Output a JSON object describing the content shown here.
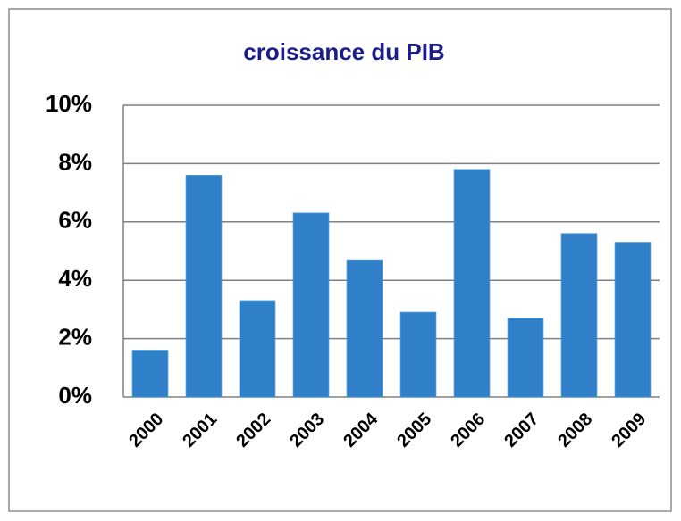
{
  "chart_data": {
    "type": "bar",
    "title": "croissance du PIB",
    "categories": [
      "2000",
      "2001",
      "2002",
      "2003",
      "2004",
      "2005",
      "2006",
      "2007",
      "2008",
      "2009"
    ],
    "values": [
      1.6,
      7.6,
      3.3,
      6.3,
      4.7,
      2.9,
      7.8,
      2.7,
      5.6,
      5.3
    ],
    "color": "#2f80c6",
    "ylim": [
      0,
      10
    ],
    "yticks": [
      {
        "value": 0,
        "label": "0%"
      },
      {
        "value": 2,
        "label": "2%"
      },
      {
        "value": 4,
        "label": "4%"
      },
      {
        "value": 6,
        "label": "6%"
      },
      {
        "value": 8,
        "label": "8%"
      },
      {
        "value": 10,
        "label": "10%"
      }
    ],
    "grid": true
  }
}
